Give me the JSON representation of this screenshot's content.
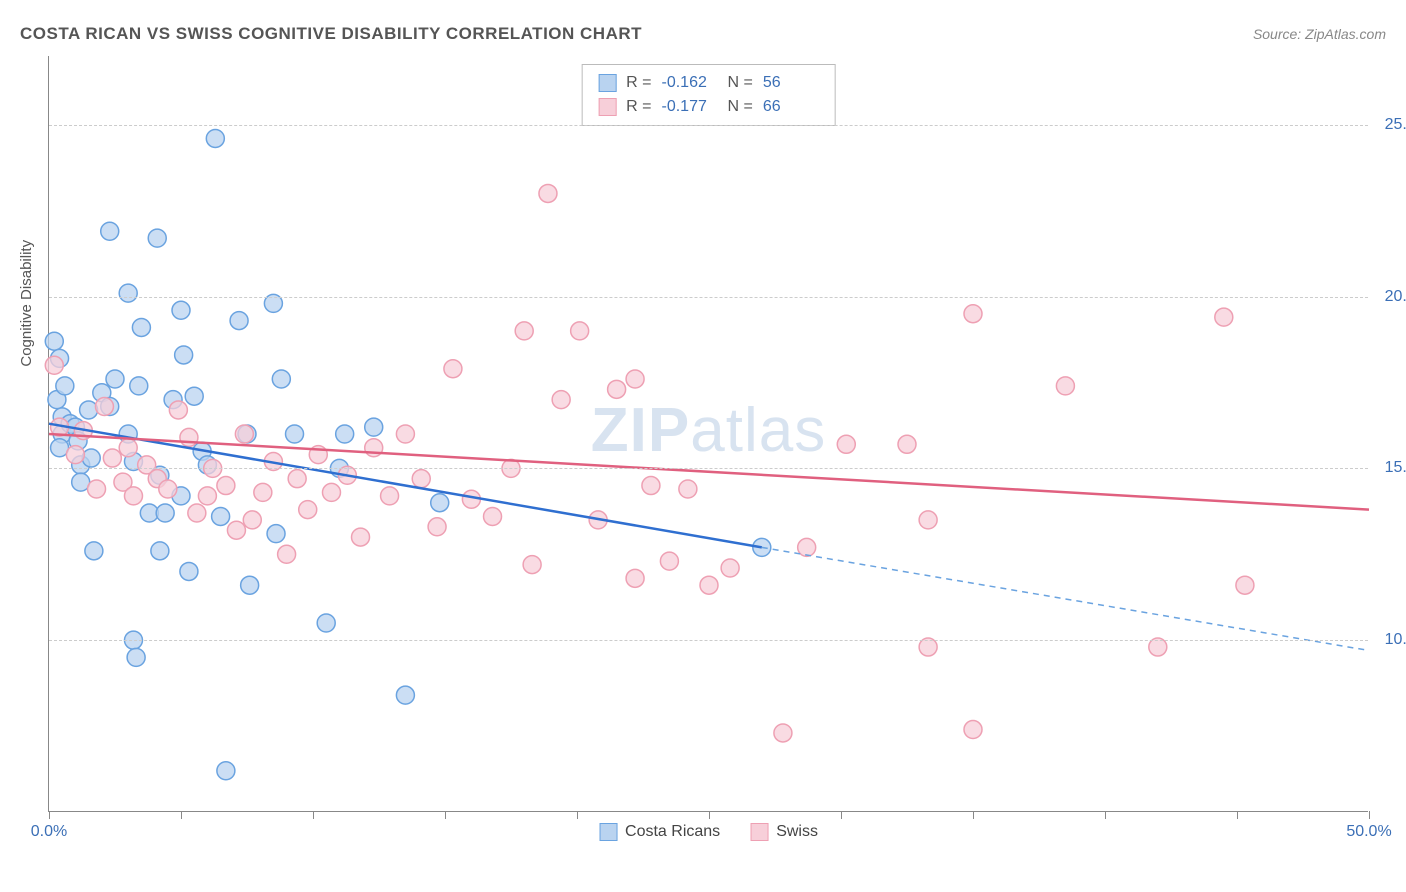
{
  "title": "COSTA RICAN VS SWISS COGNITIVE DISABILITY CORRELATION CHART",
  "source_label": "Source:",
  "source_value": "ZipAtlas.com",
  "y_axis_title": "Cognitive Disability",
  "watermark_bold": "ZIP",
  "watermark_light": "atlas",
  "chart": {
    "type": "scatter",
    "xlim": [
      0,
      50
    ],
    "ylim": [
      5,
      27
    ],
    "x_ticks": [
      0,
      5,
      10,
      15,
      20,
      25,
      30,
      35,
      40,
      45,
      50
    ],
    "x_tick_labels": {
      "0": "0.0%",
      "50": "50.0%"
    },
    "y_grid": [
      10,
      15,
      20,
      25
    ],
    "y_tick_labels": {
      "10": "10.0%",
      "15": "15.0%",
      "20": "20.0%",
      "25": "25.0%"
    },
    "background_color": "#ffffff",
    "grid_color": "#cccccc",
    "axis_color": "#888888",
    "tick_label_color": "#3b6fb6",
    "series": [
      {
        "name": "Costa Ricans",
        "label": "Costa Ricans",
        "marker_fill": "#b9d3f0",
        "marker_stroke": "#6aa3e0",
        "marker_r": 9,
        "line_color": "#2f6fd0",
        "line_width": 2.5,
        "R": "-0.162",
        "N": "56",
        "regression": {
          "x0": 0,
          "y0": 16.3,
          "x1": 27,
          "y1": 12.7
        },
        "extension": {
          "x0": 27,
          "y0": 12.7,
          "x1": 50,
          "y1": 9.7
        },
        "points": [
          [
            0.2,
            18.7
          ],
          [
            0.4,
            18.2
          ],
          [
            0.3,
            17.0
          ],
          [
            0.5,
            16.5
          ],
          [
            0.5,
            16.0
          ],
          [
            0.4,
            15.6
          ],
          [
            0.6,
            17.4
          ],
          [
            0.8,
            16.3
          ],
          [
            1.0,
            16.2
          ],
          [
            1.1,
            15.8
          ],
          [
            1.2,
            15.1
          ],
          [
            1.2,
            14.6
          ],
          [
            1.5,
            16.7
          ],
          [
            1.6,
            15.3
          ],
          [
            1.7,
            12.6
          ],
          [
            2.0,
            17.2
          ],
          [
            2.3,
            16.8
          ],
          [
            2.3,
            21.9
          ],
          [
            2.5,
            17.6
          ],
          [
            3.0,
            16.0
          ],
          [
            3.0,
            20.1
          ],
          [
            3.2,
            15.2
          ],
          [
            3.2,
            10.0
          ],
          [
            3.3,
            9.5
          ],
          [
            3.4,
            17.4
          ],
          [
            3.5,
            19.1
          ],
          [
            3.8,
            13.7
          ],
          [
            4.1,
            21.7
          ],
          [
            4.2,
            14.8
          ],
          [
            4.2,
            12.6
          ],
          [
            4.4,
            13.7
          ],
          [
            4.7,
            17.0
          ],
          [
            5.0,
            14.2
          ],
          [
            5.0,
            19.6
          ],
          [
            5.1,
            18.3
          ],
          [
            5.3,
            12.0
          ],
          [
            5.5,
            17.1
          ],
          [
            5.8,
            15.5
          ],
          [
            6.0,
            15.1
          ],
          [
            6.3,
            24.6
          ],
          [
            6.5,
            13.6
          ],
          [
            6.7,
            6.2
          ],
          [
            7.2,
            19.3
          ],
          [
            7.5,
            16.0
          ],
          [
            7.6,
            11.6
          ],
          [
            8.5,
            19.8
          ],
          [
            8.6,
            13.1
          ],
          [
            8.8,
            17.6
          ],
          [
            9.3,
            16.0
          ],
          [
            10.5,
            10.5
          ],
          [
            11.0,
            15.0
          ],
          [
            11.2,
            16.0
          ],
          [
            12.3,
            16.2
          ],
          [
            13.5,
            8.4
          ],
          [
            14.8,
            14.0
          ],
          [
            27.0,
            12.7
          ]
        ]
      },
      {
        "name": "Swiss",
        "label": "Swiss",
        "marker_fill": "#f7cfd9",
        "marker_stroke": "#eea0b3",
        "marker_r": 9,
        "line_color": "#e0607f",
        "line_width": 2.5,
        "R": "-0.177",
        "N": "66",
        "regression": {
          "x0": 0,
          "y0": 16.0,
          "x1": 50,
          "y1": 13.8
        },
        "points": [
          [
            0.2,
            18.0
          ],
          [
            0.4,
            16.2
          ],
          [
            1.0,
            15.4
          ],
          [
            1.3,
            16.1
          ],
          [
            1.8,
            14.4
          ],
          [
            2.1,
            16.8
          ],
          [
            2.4,
            15.3
          ],
          [
            2.8,
            14.6
          ],
          [
            3.0,
            15.6
          ],
          [
            3.2,
            14.2
          ],
          [
            3.7,
            15.1
          ],
          [
            4.1,
            14.7
          ],
          [
            4.5,
            14.4
          ],
          [
            4.9,
            16.7
          ],
          [
            5.3,
            15.9
          ],
          [
            5.6,
            13.7
          ],
          [
            6.0,
            14.2
          ],
          [
            6.2,
            15.0
          ],
          [
            6.7,
            14.5
          ],
          [
            7.1,
            13.2
          ],
          [
            7.4,
            16.0
          ],
          [
            7.7,
            13.5
          ],
          [
            8.1,
            14.3
          ],
          [
            8.5,
            15.2
          ],
          [
            9.0,
            12.5
          ],
          [
            9.4,
            14.7
          ],
          [
            9.8,
            13.8
          ],
          [
            10.2,
            15.4
          ],
          [
            10.7,
            14.3
          ],
          [
            11.3,
            14.8
          ],
          [
            11.8,
            13.0
          ],
          [
            12.3,
            15.6
          ],
          [
            12.9,
            14.2
          ],
          [
            13.5,
            16.0
          ],
          [
            14.1,
            14.7
          ],
          [
            14.7,
            13.3
          ],
          [
            15.3,
            17.9
          ],
          [
            16.0,
            14.1
          ],
          [
            16.8,
            13.6
          ],
          [
            17.5,
            15.0
          ],
          [
            18.0,
            19.0
          ],
          [
            18.3,
            12.2
          ],
          [
            18.9,
            23.0
          ],
          [
            19.4,
            17.0
          ],
          [
            20.1,
            19.0
          ],
          [
            20.8,
            13.5
          ],
          [
            21.5,
            17.3
          ],
          [
            22.2,
            11.8
          ],
          [
            22.2,
            17.6
          ],
          [
            22.8,
            14.5
          ],
          [
            23.5,
            12.3
          ],
          [
            24.2,
            14.4
          ],
          [
            25.0,
            11.6
          ],
          [
            25.8,
            12.1
          ],
          [
            27.8,
            7.3
          ],
          [
            28.7,
            12.7
          ],
          [
            30.2,
            15.7
          ],
          [
            32.5,
            15.7
          ],
          [
            33.3,
            13.5
          ],
          [
            33.3,
            9.8
          ],
          [
            35.0,
            19.5
          ],
          [
            35.0,
            7.4
          ],
          [
            38.5,
            17.4
          ],
          [
            42.0,
            9.8
          ],
          [
            44.5,
            19.4
          ],
          [
            45.3,
            11.6
          ]
        ]
      }
    ]
  },
  "legend_top": {
    "r_label": "R =",
    "n_label": "N ="
  }
}
